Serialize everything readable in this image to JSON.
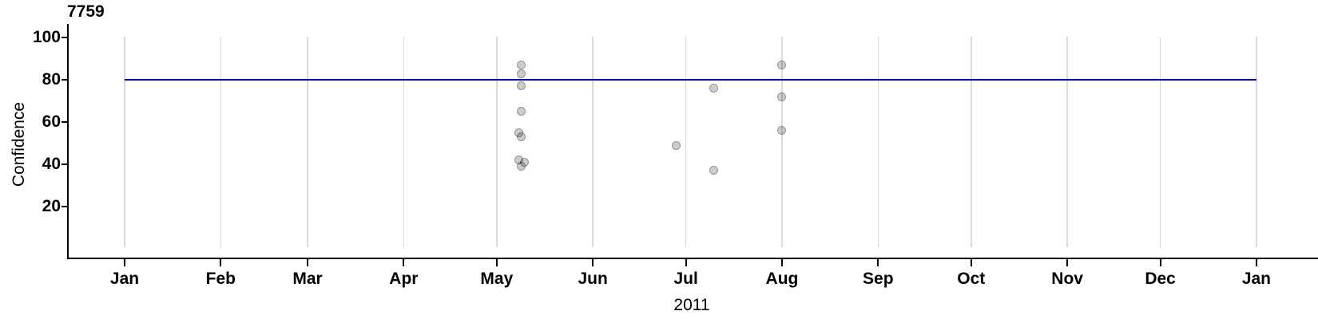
{
  "chart_data": {
    "type": "scatter",
    "title": "7759",
    "xlabel": "2011",
    "ylabel": "Confidence",
    "x_axis": {
      "unit": "date",
      "range": [
        "2011-01-01",
        "2012-01-01"
      ],
      "tick_labels": [
        "Jan",
        "Feb",
        "Mar",
        "Apr",
        "May",
        "Jun",
        "Jul",
        "Aug",
        "Sep",
        "Oct",
        "Nov",
        "Dec",
        "Jan"
      ]
    },
    "y_axis": {
      "ticks": [
        100,
        80,
        60,
        40,
        20
      ],
      "range": [
        0,
        105
      ]
    },
    "grid": "vertical-month-gridlines",
    "legend": "none",
    "reference_line": {
      "type": "horizontal",
      "value": 80
    },
    "points": [
      {
        "date": "2011-05-09",
        "value": 87
      },
      {
        "date": "2011-05-09",
        "value": 83
      },
      {
        "date": "2011-05-09",
        "value": 77
      },
      {
        "date": "2011-05-09",
        "value": 65
      },
      {
        "date": "2011-05-08",
        "value": 55
      },
      {
        "date": "2011-05-09",
        "value": 53
      },
      {
        "date": "2011-05-08",
        "value": 42
      },
      {
        "date": "2011-05-10",
        "value": 41
      },
      {
        "date": "2011-05-09",
        "value": 39
      },
      {
        "date": "2011-06-28",
        "value": 49
      },
      {
        "date": "2011-07-10",
        "value": 76
      },
      {
        "date": "2011-07-10",
        "value": 37
      },
      {
        "date": "2011-08-01",
        "value": 87
      },
      {
        "date": "2011-08-01",
        "value": 72
      },
      {
        "date": "2011-08-01",
        "value": 56
      }
    ],
    "point_style": {
      "marker": "circle",
      "base_fill": "#cbcbcb",
      "semi_transparent": true
    }
  },
  "colors": {
    "reference_line": "#0000cc",
    "gridline": "#d9d9d9",
    "axis": "#000000",
    "point_fill": "rgba(0,0,0,0.2)",
    "point_stroke": "rgba(0,0,0,0.28)",
    "text": "#000000"
  }
}
